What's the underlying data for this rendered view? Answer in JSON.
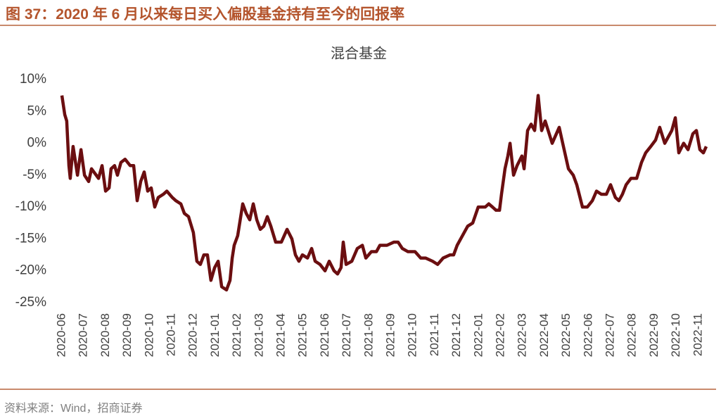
{
  "header": {
    "title": "图 37：2020 年 6 月以来每日买入偏股基金持有至今的回报率"
  },
  "chart_data": {
    "type": "line",
    "title": "混合基金",
    "x": [
      0,
      0.13,
      0.22,
      0.32,
      0.38,
      0.51,
      0.71,
      0.87,
      1.03,
      1.22,
      1.35,
      1.67,
      1.83,
      1.99,
      2.15,
      2.24,
      2.4,
      2.53,
      2.69,
      2.88,
      3.11,
      3.27,
      3.43,
      3.59,
      3.75,
      3.91,
      4.07,
      4.23,
      4.39,
      4.62,
      4.78,
      5.03,
      5.19,
      5.42,
      5.58,
      5.77,
      5.99,
      6.15,
      6.31,
      6.47,
      6.63,
      6.79,
      6.96,
      7.12,
      7.28,
      7.5,
      7.66,
      7.76,
      7.85,
      8.01,
      8.24,
      8.4,
      8.56,
      8.72,
      8.88,
      9.04,
      9.2,
      9.36,
      9.52,
      9.74,
      10,
      10.26,
      10.48,
      10.64,
      10.8,
      10.96,
      11.19,
      11.38,
      11.54,
      11.76,
      11.99,
      12.18,
      12.4,
      12.56,
      12.72,
      12.82,
      12.95,
      13.21,
      13.46,
      13.69,
      13.85,
      14.1,
      14.33,
      14.49,
      14.81,
      15.13,
      15.32,
      15.51,
      15.77,
      16.09,
      16.35,
      16.57,
      16.89,
      17.12,
      17.37,
      17.69,
      17.85,
      18.01,
      18.17,
      18.49,
      18.72,
      18.97,
      19.29,
      19.45,
      19.62,
      19.78,
      19.94,
      20.03,
      20.19,
      20.32,
      20.42,
      20.58,
      20.74,
      20.96,
      21.06,
      21.22,
      21.38,
      21.54,
      21.7,
      21.86,
      22.02,
      22.34,
      22.66,
      22.82,
      23.08,
      23.3,
      23.46,
      23.72,
      23.94,
      24.17,
      24.36,
      24.58,
      24.81,
      25,
      25.22,
      25.38,
      25.54,
      25.71,
      25.93,
      26.19,
      26.41,
      26.6,
      26.83,
      27.05,
      27.24,
      27.47,
      27.63,
      27.79,
      27.95,
      28.11,
      28.33,
      28.53,
      28.75,
      28.91,
      29.07,
      29.23,
      29.36
    ],
    "series": [
      {
        "color": "#6b0e10",
        "values": [
          7.5,
          4.5,
          3.5,
          -3.5,
          -5.5,
          -0.5,
          -5,
          -1,
          -5,
          -6,
          -4,
          -5.5,
          -3.5,
          -7.5,
          -7,
          -4,
          -3.5,
          -5,
          -3,
          -2.5,
          -3.5,
          -3.5,
          -9,
          -6,
          -4.5,
          -7.5,
          -7,
          -10,
          -8.5,
          -8,
          -7.5,
          -8.5,
          -9,
          -9.5,
          -11,
          -11.5,
          -14,
          -18.5,
          -19,
          -17.5,
          -17.5,
          -21.5,
          -19.5,
          -18.5,
          -22.5,
          -23,
          -21.5,
          -18,
          -16,
          -14.5,
          -9.5,
          -11,
          -12,
          -9.5,
          -12,
          -13.5,
          -13,
          -11.5,
          -13,
          -15.5,
          -15.5,
          -13.5,
          -15,
          -17.5,
          -18.5,
          -17.5,
          -18,
          -16.5,
          -18.5,
          -19,
          -20,
          -18.5,
          -20,
          -20.5,
          -19.5,
          -15.5,
          -19,
          -18.5,
          -16.5,
          -16,
          -18,
          -17,
          -17,
          -16,
          -16,
          -15.5,
          -15.5,
          -16.5,
          -17,
          -17,
          -18,
          -18,
          -18.5,
          -19,
          -18,
          -17.5,
          -17.5,
          -16,
          -15,
          -13,
          -12.5,
          -10,
          -10,
          -9.5,
          -10,
          -10.5,
          -10.5,
          -8,
          -4,
          -2,
          0,
          -5,
          -3.5,
          -2,
          -4,
          2,
          3,
          2,
          7.5,
          2,
          3.5,
          0,
          2.5,
          0,
          -4,
          -5,
          -6.5,
          -10,
          -10,
          -9,
          -7.5,
          -8,
          -8,
          -6.5,
          -8.5,
          -9,
          -8,
          -6.5,
          -5.5,
          -5.5,
          -3,
          -1.5,
          -0.5,
          0.5,
          2.5,
          0,
          1,
          2,
          4,
          -1.5,
          0,
          -1,
          1.5,
          2,
          -1,
          -1.5,
          -0.5
        ]
      }
    ],
    "xlim": [
      0,
      29.5
    ],
    "xticks": [
      {
        "value": 0,
        "label": "2020-06"
      },
      {
        "value": 1,
        "label": "2020-07"
      },
      {
        "value": 2,
        "label": "2020-08"
      },
      {
        "value": 3,
        "label": "2020-09"
      },
      {
        "value": 4,
        "label": "2020-10"
      },
      {
        "value": 5,
        "label": "2020-11"
      },
      {
        "value": 6,
        "label": "2020-12"
      },
      {
        "value": 7,
        "label": "2021-01"
      },
      {
        "value": 8,
        "label": "2021-02"
      },
      {
        "value": 9,
        "label": "2021-03"
      },
      {
        "value": 10,
        "label": "2021-04"
      },
      {
        "value": 11,
        "label": "2021-05"
      },
      {
        "value": 12,
        "label": "2021-06"
      },
      {
        "value": 13,
        "label": "2021-07"
      },
      {
        "value": 14,
        "label": "2021-08"
      },
      {
        "value": 15,
        "label": "2021-09"
      },
      {
        "value": 16,
        "label": "2021-10"
      },
      {
        "value": 17,
        "label": "2021-11"
      },
      {
        "value": 18,
        "label": "2021-12"
      },
      {
        "value": 19,
        "label": "2022-01"
      },
      {
        "value": 20,
        "label": "2022-02"
      },
      {
        "value": 21,
        "label": "2022-03"
      },
      {
        "value": 22,
        "label": "2022-04"
      },
      {
        "value": 23,
        "label": "2022-05"
      },
      {
        "value": 24,
        "label": "2022-06"
      },
      {
        "value": 25,
        "label": "2022-07"
      },
      {
        "value": 26,
        "label": "2022-08"
      },
      {
        "value": 27,
        "label": "2022-09"
      },
      {
        "value": 28,
        "label": "2022-10"
      },
      {
        "value": 29,
        "label": "2022-11"
      }
    ],
    "ylim": [
      -25,
      10
    ],
    "yticks": [
      {
        "value": 10,
        "label": "10%"
      },
      {
        "value": 5,
        "label": "5%"
      },
      {
        "value": 0,
        "label": "0%"
      },
      {
        "value": -5,
        "label": "-5%"
      },
      {
        "value": -10,
        "label": "-10%"
      },
      {
        "value": -15,
        "label": "-15%"
      },
      {
        "value": -20,
        "label": "-20%"
      },
      {
        "value": -25,
        "label": "-25%"
      }
    ],
    "grid": false
  },
  "footer": {
    "source": "资料来源：Wind，招商证券"
  }
}
